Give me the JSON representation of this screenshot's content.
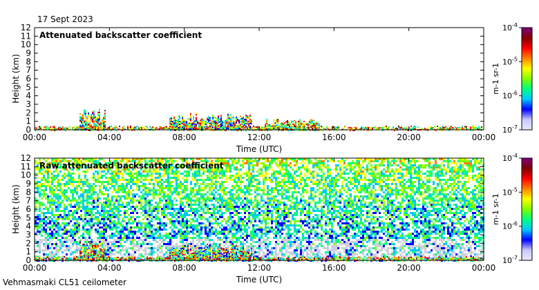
{
  "header": {
    "date": "17 Sept 2023"
  },
  "footer": {
    "instrument": "Vehmasmaki CL51 ceilometer"
  },
  "colors": {
    "scale": [
      "#e8e8ff",
      "#c8c8ff",
      "#0000ff",
      "#00c8ff",
      "#00ff80",
      "#80ff00",
      "#ffff00",
      "#ff8000",
      "#ff0000",
      "#800000",
      "#800080"
    ],
    "background": "#ffffff",
    "noise_grey": "#d0d0d8"
  },
  "chart_data": [
    {
      "type": "heatmap",
      "title": "Attenuated backscatter coefficient",
      "xlabel": "Time (UTC)",
      "ylabel": "Height (km)",
      "x_ticks": [
        "00:00",
        "04:00",
        "08:00",
        "12:00",
        "16:00",
        "20:00",
        "00:00"
      ],
      "x_range_hours": [
        0,
        24
      ],
      "y_ticks": [
        "0",
        "1",
        "2",
        "3",
        "4",
        "5",
        "6",
        "7",
        "8",
        "9",
        "10",
        "11",
        "12"
      ],
      "ylim": [
        0,
        12
      ],
      "colorbar": {
        "ticks": [
          "10-7",
          "10-6",
          "10-5",
          "10-4"
        ],
        "label": "m-1 sr-1",
        "log_range": [
          -7,
          -4
        ]
      },
      "features": [
        {
          "name": "surface layer",
          "start_hour": 0,
          "end_hour": 24,
          "top_km": 0.5,
          "level": 0.6
        },
        {
          "name": "cloud",
          "start_hour": 2.4,
          "end_hour": 3.8,
          "top_km": 2.5,
          "level": 0.55
        },
        {
          "name": "cloud",
          "start_hour": 7.2,
          "end_hour": 11.6,
          "top_km": 2.0,
          "level": 0.5
        },
        {
          "name": "cloud",
          "start_hour": 12.3,
          "end_hour": 15.2,
          "top_km": 1.3,
          "level": 0.6
        }
      ]
    },
    {
      "type": "heatmap",
      "title": "Raw attenuated backscatter coefficient",
      "xlabel": "Time (UTC)",
      "ylabel": "Height (km)",
      "x_ticks": [
        "00:00",
        "04:00",
        "08:00",
        "12:00",
        "16:00",
        "20:00",
        "00:00"
      ],
      "x_range_hours": [
        0,
        24
      ],
      "y_ticks": [
        "0",
        "1",
        "2",
        "3",
        "4",
        "5",
        "6",
        "7",
        "8",
        "9",
        "10",
        "11",
        "12"
      ],
      "ylim": [
        0,
        12
      ],
      "colorbar": {
        "ticks": [
          "10-7",
          "10-6",
          "10-5",
          "10-4"
        ],
        "label": "m-1 sr-1",
        "log_range": [
          -7,
          -4
        ]
      },
      "features": [
        {
          "name": "background noise",
          "start_hour": 0,
          "end_hour": 24,
          "top_km": 12,
          "level": 0.45
        },
        {
          "name": "surface layer",
          "start_hour": 0,
          "end_hour": 24,
          "top_km": 0.5,
          "level": 0.6
        },
        {
          "name": "cloud",
          "start_hour": 2.4,
          "end_hour": 3.8,
          "top_km": 2.5,
          "level": 0.55
        },
        {
          "name": "cloud",
          "start_hour": 7.2,
          "end_hour": 11.6,
          "top_km": 2.0,
          "level": 0.5
        }
      ]
    }
  ]
}
